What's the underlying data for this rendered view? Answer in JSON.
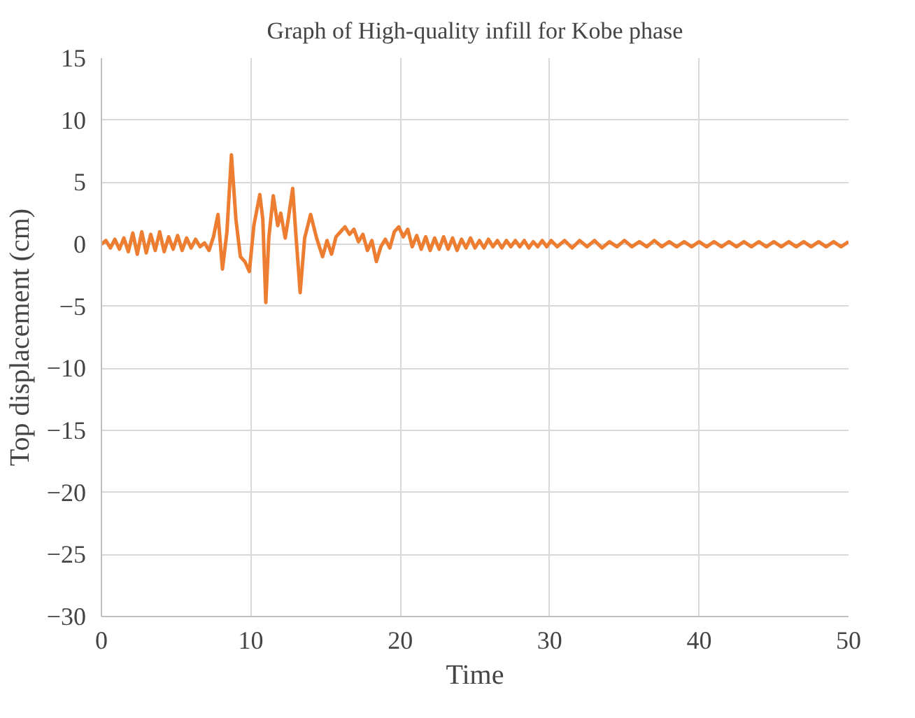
{
  "chart_data": {
    "type": "line",
    "title": "Graph of High-quality infill for Kobe phase",
    "xlabel": "Time",
    "ylabel": "Top displacement (cm)",
    "xlim": [
      0,
      50
    ],
    "xticks": [
      0,
      10,
      20,
      30,
      40,
      50
    ],
    "ylim": [
      -30,
      15
    ],
    "yticks": [
      -30,
      -25,
      -20,
      -15,
      -10,
      -5,
      0,
      5,
      10,
      15
    ],
    "grid": true,
    "marker": "none",
    "line_style": "solid",
    "series": [
      {
        "color": "#ed7d31",
        "x": [
          0,
          0.3,
          0.6,
          0.9,
          1.2,
          1.5,
          1.8,
          2.1,
          2.4,
          2.7,
          3.0,
          3.3,
          3.6,
          3.9,
          4.2,
          4.5,
          4.8,
          5.1,
          5.4,
          5.7,
          6.0,
          6.3,
          6.6,
          6.9,
          7.2,
          7.5,
          7.8,
          8.1,
          8.4,
          8.7,
          9.0,
          9.3,
          9.6,
          9.9,
          10.2,
          10.6,
          10.8,
          11.0,
          11.2,
          11.5,
          11.8,
          12.0,
          12.3,
          12.5,
          12.8,
          13.0,
          13.3,
          13.6,
          14.0,
          14.4,
          14.8,
          15.1,
          15.4,
          15.7,
          16.0,
          16.3,
          16.6,
          16.9,
          17.2,
          17.5,
          17.8,
          18.1,
          18.4,
          18.7,
          19.0,
          19.3,
          19.6,
          19.9,
          20.2,
          20.5,
          20.8,
          21.1,
          21.4,
          21.7,
          22.0,
          22.3,
          22.6,
          22.9,
          23.2,
          23.5,
          23.8,
          24.1,
          24.4,
          24.7,
          25.0,
          25.3,
          25.6,
          25.9,
          26.2,
          26.5,
          26.8,
          27.1,
          27.4,
          27.7,
          28.0,
          28.3,
          28.6,
          28.9,
          29.2,
          29.5,
          29.8,
          30.1,
          30.5,
          31.0,
          31.5,
          32.0,
          32.5,
          33.0,
          33.5,
          34.0,
          34.5,
          35.0,
          35.5,
          36.0,
          36.5,
          37.0,
          37.5,
          38.0,
          38.5,
          39.0,
          39.5,
          40.0,
          40.5,
          41.0,
          41.5,
          42.0,
          42.5,
          43.0,
          43.5,
          44.0,
          44.5,
          45.0,
          45.5,
          46.0,
          46.5,
          47.0,
          47.5,
          48.0,
          48.5,
          49.0,
          49.5,
          50.0
        ],
        "values": [
          0,
          0.3,
          -0.3,
          0.4,
          -0.4,
          0.5,
          -0.6,
          0.9,
          -0.8,
          1.0,
          -0.7,
          0.8,
          -0.5,
          1.0,
          -0.6,
          0.6,
          -0.4,
          0.7,
          -0.5,
          0.5,
          -0.3,
          0.4,
          -0.2,
          0.1,
          -0.5,
          0.6,
          2.4,
          -2.0,
          1.0,
          7.2,
          2.0,
          -1.0,
          -1.4,
          -2.2,
          1.5,
          4.0,
          2.0,
          -4.7,
          0.5,
          3.9,
          1.5,
          2.5,
          0.5,
          2.0,
          4.5,
          1.0,
          -3.9,
          0.5,
          2.4,
          0.5,
          -1.0,
          0.3,
          -0.8,
          0.6,
          1.0,
          1.4,
          0.8,
          1.2,
          0.2,
          0.8,
          -0.5,
          0.3,
          -1.4,
          -0.2,
          0.4,
          -0.3,
          1.0,
          1.4,
          0.6,
          1.2,
          -0.2,
          0.7,
          -0.4,
          0.6,
          -0.5,
          0.5,
          -0.4,
          0.6,
          -0.4,
          0.5,
          -0.5,
          0.4,
          -0.3,
          0.5,
          -0.3,
          0.3,
          -0.3,
          0.4,
          -0.2,
          0.3,
          -0.3,
          0.3,
          -0.2,
          0.3,
          -0.2,
          0.3,
          -0.3,
          0.2,
          -0.2,
          0.3,
          -0.2,
          0.3,
          -0.2,
          0.3,
          -0.3,
          0.3,
          -0.2,
          0.3,
          -0.3,
          0.2,
          -0.2,
          0.3,
          -0.2,
          0.2,
          -0.2,
          0.3,
          -0.2,
          0.2,
          -0.2,
          0.2,
          -0.2,
          0.2,
          -0.2,
          0.2,
          -0.2,
          0.2,
          -0.2,
          0.2,
          -0.2,
          0.2,
          -0.2,
          0.2,
          -0.2,
          0.2,
          -0.2,
          0.2,
          -0.2,
          0.2,
          -0.2,
          0.2,
          -0.2,
          0.2
        ]
      }
    ]
  }
}
